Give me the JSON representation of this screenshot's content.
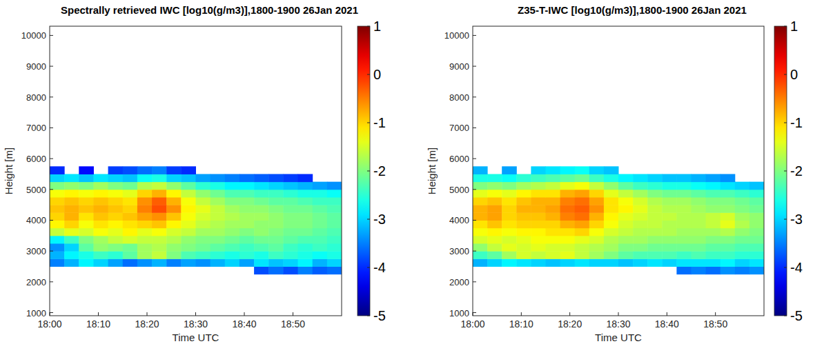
{
  "chart_data": [
    {
      "type": "heatmap",
      "title": "Spectrally retrieved IWC [log10(g/m3)],1800-1900 26Jan 2021",
      "x_label": "Time UTC",
      "y_label": "Height [m]",
      "xlim": [
        0,
        60
      ],
      "xticks": [
        {
          "value": 0,
          "label": "18:00"
        },
        {
          "value": 10,
          "label": "18:10"
        },
        {
          "value": 20,
          "label": "18:20"
        },
        {
          "value": 30,
          "label": "18:30"
        },
        {
          "value": 40,
          "label": "18:40"
        },
        {
          "value": 50,
          "label": "18:50"
        }
      ],
      "ylim": [
        900,
        10300
      ],
      "yticks": [
        1000,
        2000,
        3000,
        4000,
        5000,
        6000,
        7000,
        8000,
        9000,
        10000
      ],
      "x": [
        1.5,
        4.5,
        7.5,
        10.5,
        13.5,
        16.5,
        19.5,
        22.5,
        25.5,
        28.5,
        31.5,
        34.5,
        37.5,
        40.5,
        43.5,
        46.5,
        49.5,
        52.5,
        55.5,
        58.5
      ],
      "y": [
        2375,
        2625,
        2875,
        3125,
        3375,
        3625,
        3875,
        4125,
        4375,
        4625,
        4875,
        5125,
        5375,
        5625
      ],
      "values": [
        [
          null,
          null,
          null,
          null,
          null,
          null,
          null,
          null,
          null,
          null,
          null,
          null,
          null,
          null,
          -3.8,
          -3.6,
          -3.8,
          -3.5,
          -3.7,
          -3.6
        ],
        [
          -3.5,
          -3.2,
          -2.8,
          -3.0,
          -3.3,
          -3.6,
          -3.4,
          -3.2,
          -3.5,
          -3.3,
          -3.4,
          -3.2,
          -3.0,
          -3.3,
          -2.9,
          -3.1,
          -3.0,
          -2.8,
          -3.2,
          -3.0
        ],
        [
          -3.2,
          -2.8,
          -2.6,
          -2.4,
          -2.5,
          -2.2,
          -1.8,
          -1.6,
          -2.0,
          -2.3,
          -2.4,
          -2.5,
          -2.6,
          -2.5,
          -2.6,
          -2.4,
          -2.5,
          -2.6,
          -2.7,
          -2.6
        ],
        [
          -3.4,
          -3.0,
          -2.2,
          -1.9,
          -2.0,
          -2.1,
          -1.8,
          -1.7,
          -1.9,
          -2.0,
          -2.1,
          -2.2,
          -2.3,
          -2.4,
          -2.3,
          -2.2,
          -2.4,
          -2.5,
          -2.4,
          -2.5
        ],
        [
          -2.8,
          -2.4,
          -2.0,
          -1.8,
          -1.6,
          -1.5,
          -1.6,
          -1.6,
          -1.7,
          -1.9,
          -2.0,
          -2.0,
          -2.1,
          -2.2,
          -2.1,
          -2.1,
          -2.2,
          -2.3,
          -2.3,
          -2.4
        ],
        [
          -1.6,
          -1.4,
          -1.5,
          -1.3,
          -1.4,
          -1.2,
          -1.4,
          -1.3,
          -1.5,
          -1.6,
          -1.8,
          -1.8,
          -1.9,
          -2.0,
          -1.9,
          -2.0,
          -2.1,
          -2.1,
          -2.2,
          -2.3
        ],
        [
          -1.2,
          -1.0,
          -1.3,
          -1.1,
          -1.2,
          -1.1,
          -1.0,
          -0.9,
          -1.2,
          -1.4,
          -1.6,
          -1.7,
          -1.8,
          -1.8,
          -1.9,
          -1.9,
          -2.0,
          -2.0,
          -2.1,
          -2.2
        ],
        [
          -1.0,
          -0.8,
          -1.1,
          -0.9,
          -1.0,
          -0.9,
          -0.7,
          -0.6,
          -0.9,
          -1.3,
          -1.5,
          -1.6,
          -1.7,
          -1.8,
          -1.8,
          -1.9,
          -2.0,
          -2.0,
          -2.1,
          -2.2
        ],
        [
          -0.9,
          -0.8,
          -0.9,
          -0.8,
          -0.9,
          -1.0,
          -0.5,
          -0.2,
          -0.6,
          -1.2,
          -1.4,
          -1.6,
          -1.8,
          -1.9,
          -1.9,
          -2.0,
          -2.1,
          -2.1,
          -2.2,
          -2.3
        ],
        [
          -1.0,
          -0.9,
          -1.0,
          -0.9,
          -1.0,
          -1.1,
          -0.6,
          -0.3,
          -0.8,
          -1.3,
          -1.6,
          -1.8,
          -2.0,
          -2.0,
          -2.1,
          -2.2,
          -2.2,
          -2.3,
          -2.4,
          -2.4
        ],
        [
          -1.3,
          -1.2,
          -1.3,
          -1.2,
          -1.3,
          -1.4,
          -1.0,
          -0.8,
          -1.2,
          -1.6,
          -1.9,
          -2.1,
          -2.3,
          -2.3,
          -2.4,
          -2.4,
          -2.5,
          -2.6,
          -2.6,
          -2.7
        ],
        [
          -2.0,
          -1.9,
          -2.0,
          -1.8,
          -2.0,
          -2.1,
          -1.7,
          -1.6,
          -1.9,
          -2.2,
          -2.5,
          -2.6,
          -2.8,
          -2.8,
          -2.9,
          -3.0,
          -3.1,
          -3.2,
          -3.3,
          -3.4
        ],
        [
          -3.0,
          -2.9,
          -3.1,
          -2.9,
          -3.0,
          -3.1,
          -2.7,
          -2.6,
          -3.0,
          -3.1,
          -3.3,
          -3.4,
          -3.5,
          -3.6,
          -3.7,
          -3.8,
          -3.9,
          -4.0,
          null,
          null
        ],
        [
          -4.0,
          null,
          -4.2,
          null,
          -3.9,
          -3.8,
          -3.6,
          -3.5,
          -3.9,
          -4.0,
          null,
          null,
          null,
          null,
          null,
          null,
          null,
          null,
          null,
          null
        ]
      ],
      "color_range": [
        -5,
        1
      ],
      "color_ticks": [
        -5,
        -4,
        -3,
        -2,
        -1,
        0,
        1
      ]
    },
    {
      "type": "heatmap",
      "title": "Z35-T-IWC [log10(g/m3)],1800-1900 26Jan 2021",
      "x_label": "Time UTC",
      "y_label": "Height [m]",
      "xlim": [
        0,
        60
      ],
      "xticks": [
        {
          "value": 0,
          "label": "18:00"
        },
        {
          "value": 10,
          "label": "18:10"
        },
        {
          "value": 20,
          "label": "18:20"
        },
        {
          "value": 30,
          "label": "18:30"
        },
        {
          "value": 40,
          "label": "18:40"
        },
        {
          "value": 50,
          "label": "18:50"
        }
      ],
      "ylim": [
        900,
        10300
      ],
      "yticks": [
        1000,
        2000,
        3000,
        4000,
        5000,
        6000,
        7000,
        8000,
        9000,
        10000
      ],
      "x": [
        1.5,
        4.5,
        7.5,
        10.5,
        13.5,
        16.5,
        19.5,
        22.5,
        25.5,
        28.5,
        31.5,
        34.5,
        37.5,
        40.5,
        43.5,
        46.5,
        49.5,
        52.5,
        55.5,
        58.5
      ],
      "y": [
        2375,
        2625,
        2875,
        3125,
        3375,
        3625,
        3875,
        4125,
        4375,
        4625,
        4875,
        5125,
        5375,
        5625
      ],
      "values": [
        [
          null,
          null,
          null,
          null,
          null,
          null,
          null,
          null,
          null,
          null,
          null,
          null,
          null,
          null,
          -3.6,
          -3.5,
          -3.6,
          -3.4,
          -3.5,
          -3.4
        ],
        [
          -3.2,
          -3.0,
          -2.8,
          -2.9,
          -3.0,
          -3.1,
          -3.0,
          -2.9,
          -3.0,
          -3.0,
          -3.1,
          -3.0,
          -2.9,
          -3.0,
          -2.9,
          -2.9,
          -2.9,
          -2.8,
          -3.0,
          -2.9
        ],
        [
          -2.4,
          -2.2,
          -1.8,
          -1.5,
          -1.6,
          -1.5,
          -1.4,
          -1.6,
          -1.8,
          -2.0,
          -2.2,
          -2.3,
          -2.3,
          -2.3,
          -2.4,
          -2.3,
          -2.4,
          -2.4,
          -2.5,
          -2.5
        ],
        [
          -1.9,
          -1.6,
          -1.4,
          -1.5,
          -1.4,
          -1.5,
          -1.5,
          -1.6,
          -1.7,
          -1.8,
          -2.0,
          -2.0,
          -2.1,
          -2.1,
          -2.1,
          -2.1,
          -2.2,
          -2.2,
          -2.3,
          -2.3
        ],
        [
          -1.5,
          -1.4,
          -1.5,
          -1.4,
          -1.3,
          -1.3,
          -1.3,
          -1.4,
          -1.5,
          -1.7,
          -1.8,
          -1.8,
          -1.9,
          -1.9,
          -1.9,
          -1.9,
          -2.0,
          -2.0,
          -2.1,
          -2.1
        ],
        [
          -1.3,
          -1.2,
          -1.3,
          -1.2,
          -1.2,
          -1.1,
          -1.1,
          -1.0,
          -1.3,
          -1.5,
          -1.6,
          -1.7,
          -1.7,
          -1.7,
          -1.8,
          -1.8,
          -1.8,
          -1.7,
          -1.9,
          -2.0
        ],
        [
          -1.1,
          -0.9,
          -1.1,
          -1.0,
          -1.0,
          -1.0,
          -0.8,
          -0.7,
          -1.0,
          -1.3,
          -1.5,
          -1.6,
          -1.6,
          -1.7,
          -1.7,
          -1.7,
          -1.6,
          -1.4,
          -1.7,
          -1.9
        ],
        [
          -0.8,
          -0.7,
          -1.0,
          -0.9,
          -0.9,
          -0.8,
          -0.5,
          -0.4,
          -0.8,
          -1.2,
          -1.4,
          -1.5,
          -1.6,
          -1.6,
          -1.7,
          -1.7,
          -1.6,
          -1.5,
          -1.8,
          -1.9
        ],
        [
          -0.8,
          -0.7,
          -1.0,
          -0.8,
          -0.8,
          -0.7,
          -0.4,
          -0.3,
          -0.6,
          -1.1,
          -1.2,
          -1.4,
          -1.6,
          -1.7,
          -1.7,
          -1.8,
          -1.9,
          -1.9,
          -2.0,
          -2.1
        ],
        [
          -1.0,
          -0.9,
          -1.1,
          -0.9,
          -0.8,
          -0.8,
          -0.5,
          -0.4,
          -0.7,
          -1.1,
          -1.3,
          -1.5,
          -1.7,
          -1.8,
          -1.8,
          -1.9,
          -2.0,
          -2.0,
          -2.1,
          -2.2
        ],
        [
          -1.4,
          -1.3,
          -1.4,
          -1.2,
          -1.1,
          -1.1,
          -0.8,
          -0.7,
          -1.0,
          -1.4,
          -1.6,
          -1.8,
          -2.0,
          -2.1,
          -2.1,
          -2.2,
          -2.3,
          -2.3,
          -2.4,
          -2.5
        ],
        [
          -2.0,
          -1.9,
          -2.0,
          -1.8,
          -1.7,
          -1.6,
          -1.4,
          -1.3,
          -1.6,
          -1.9,
          -2.2,
          -2.4,
          -2.5,
          -2.6,
          -2.6,
          -2.7,
          -2.8,
          -2.9,
          -3.0,
          -3.1
        ],
        [
          -2.6,
          -2.6,
          -2.7,
          -2.5,
          -2.4,
          -2.3,
          -2.2,
          -2.1,
          -2.4,
          -2.6,
          -2.8,
          -2.9,
          -3.0,
          -3.1,
          -3.1,
          -3.2,
          -3.3,
          -3.4,
          null,
          null
        ],
        [
          -3.2,
          null,
          -3.3,
          null,
          -3.0,
          -2.9,
          -2.8,
          -2.7,
          -3.0,
          -3.1,
          null,
          null,
          null,
          null,
          null,
          null,
          null,
          null,
          null,
          null
        ]
      ],
      "color_range": [
        -5,
        1
      ],
      "color_ticks": [
        -5,
        -4,
        -3,
        -2,
        -1,
        0,
        1
      ]
    }
  ]
}
